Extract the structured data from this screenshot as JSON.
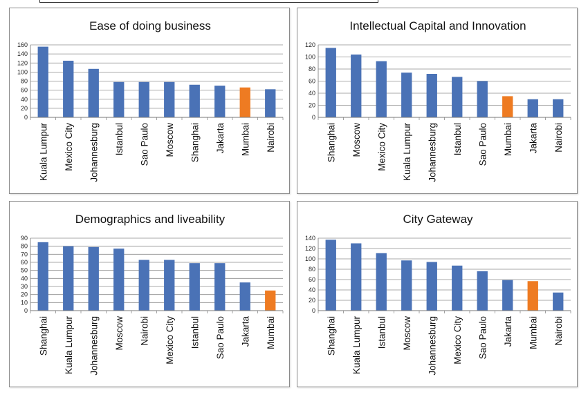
{
  "colors": {
    "bar": "#4a72b6",
    "highlight": "#ee7b22",
    "grid": "#8c8c8c"
  },
  "chart_data": [
    {
      "type": "bar",
      "title": "Ease of doing business",
      "categories": [
        "Kuala Lumpur",
        "Mexico City",
        "Johannesburg",
        "Istanbul",
        "Sao Paulo",
        "Moscow",
        "Shanghai",
        "Jakarta",
        "Mumbai",
        "Nairobi"
      ],
      "values": [
        156,
        125,
        107,
        78,
        78,
        78,
        72,
        70,
        66,
        62
      ],
      "highlight": "Mumbai",
      "ylim": [
        0,
        160
      ],
      "yticks": [
        0,
        20,
        40,
        60,
        80,
        100,
        120,
        140,
        160
      ],
      "grid": true,
      "legend": false
    },
    {
      "type": "bar",
      "title": "Intellectual Capital and Innovation",
      "categories": [
        "Shanghai",
        "Moscow",
        "Mexico City",
        "Kuala Lumpur",
        "Johannesburg",
        "Istanbul",
        "Sao Paulo",
        "Mumbai",
        "Jakarta",
        "Nairobi"
      ],
      "values": [
        115,
        104,
        93,
        74,
        72,
        67,
        60,
        35,
        30,
        30
      ],
      "highlight": "Mumbai",
      "ylim": [
        0,
        120
      ],
      "yticks": [
        0,
        20,
        40,
        60,
        80,
        100,
        120
      ],
      "grid": true,
      "legend": false
    },
    {
      "type": "bar",
      "title": "Demographics and liveability",
      "categories": [
        "Shanghai",
        "Kuala Lumpur",
        "Johannesburg",
        "Moscow",
        "Nairobi",
        "Mexico City",
        "Istanbul",
        "Sao Paulo",
        "Jakarta",
        "Mumbai"
      ],
      "values": [
        85,
        80,
        79,
        77,
        63,
        63,
        59,
        59,
        35,
        25
      ],
      "highlight": "Mumbai",
      "ylim": [
        0,
        90
      ],
      "yticks": [
        0,
        10,
        20,
        30,
        40,
        50,
        60,
        70,
        80,
        90
      ],
      "grid": true,
      "legend": false
    },
    {
      "type": "bar",
      "title": "City Gateway",
      "categories": [
        "Shanghai",
        "Kuala Lumpur",
        "Istanbul",
        "Moscow",
        "Johannesburg",
        "Mexico City",
        "Sao Paulo",
        "Jakarta",
        "Mumbai",
        "Nairobi"
      ],
      "values": [
        137,
        130,
        111,
        97,
        94,
        87,
        76,
        59,
        57,
        35
      ],
      "highlight": "Mumbai",
      "ylim": [
        0,
        140
      ],
      "yticks": [
        0,
        20,
        40,
        60,
        80,
        100,
        120,
        140
      ],
      "grid": true,
      "legend": false
    }
  ]
}
